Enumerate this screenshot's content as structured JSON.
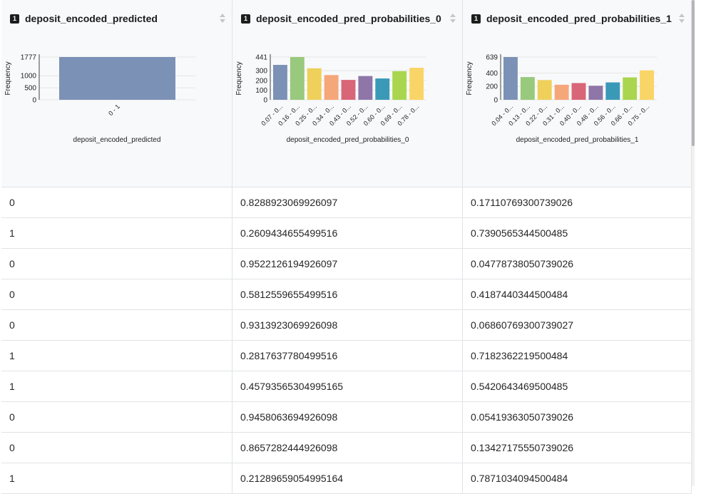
{
  "columns": [
    {
      "name": "deposit_encoded_predicted",
      "type_badge": "1"
    },
    {
      "name": "deposit_encoded_pred_probabilities_0",
      "type_badge": "1"
    },
    {
      "name": "deposit_encoded_pred_probabilities_1",
      "type_badge": "1"
    }
  ],
  "chart_data": [
    {
      "type": "bar",
      "ylabel": "Frequency",
      "xlabel": "deposit_encoded_predicted",
      "y_ticks": [
        "0",
        "500",
        "1000",
        "1777"
      ],
      "ylim": [
        0,
        1777
      ],
      "categories": [
        "0 - 1"
      ],
      "values": [
        1777
      ],
      "colors": [
        "#7b91b5"
      ]
    },
    {
      "type": "bar",
      "ylabel": "Frequency",
      "xlabel": "deposit_encoded_pred_probabilities_0",
      "y_ticks": [
        "0",
        "100",
        "200",
        "300",
        "441"
      ],
      "ylim": [
        0,
        441
      ],
      "categories": [
        "0.07 - 0...",
        "0.16 - 0...",
        "0.25 - 0...",
        "0.34 - 0...",
        "0.43 - 0...",
        "0.52 - 0...",
        "0.60 - 0...",
        "0.69 - 0...",
        "0.78 - 0..."
      ],
      "values": [
        360,
        441,
        325,
        255,
        205,
        245,
        220,
        295,
        330
      ],
      "colors": [
        "#7b91b5",
        "#98c97d",
        "#eed05b",
        "#f5a77a",
        "#d96578",
        "#8e76a8",
        "#3b99b8",
        "#a9d64e",
        "#f9d567"
      ]
    },
    {
      "type": "bar",
      "ylabel": "Frequency",
      "xlabel": "deposit_encoded_pred_probabilities_1",
      "y_ticks": [
        "0",
        "200",
        "400",
        "639"
      ],
      "ylim": [
        0,
        639
      ],
      "categories": [
        "0.04 - 0...",
        "0.13 - 0...",
        "0.22 - 0...",
        "0.31 - 0...",
        "0.40 - 0...",
        "0.48 - 0...",
        "0.56 - 0...",
        "0.66 - 0...",
        "0.75 - 0..."
      ],
      "values": [
        639,
        340,
        295,
        225,
        250,
        210,
        260,
        335,
        440
      ],
      "colors": [
        "#7b91b5",
        "#98c97d",
        "#eed05b",
        "#f5a77a",
        "#d96578",
        "#8e76a8",
        "#3b99b8",
        "#a9d64e",
        "#f9d567"
      ]
    }
  ],
  "rows": [
    [
      "0",
      "0.8288923069926097",
      "0.17110769300739026"
    ],
    [
      "1",
      "0.2609434655499516",
      "0.7390565344500485"
    ],
    [
      "0",
      "0.9522126194926097",
      "0.04778738050739026"
    ],
    [
      "0",
      "0.5812559655499516",
      "0.4187440344500484"
    ],
    [
      "0",
      "0.9313923069926098",
      "0.06860769300739027"
    ],
    [
      "1",
      "0.2817637780499516",
      "0.7182362219500484"
    ],
    [
      "1",
      "0.45793565304995165",
      "0.5420643469500485"
    ],
    [
      "0",
      "0.9458063694926098",
      "0.05419363050739026"
    ],
    [
      "0",
      "0.8657282444926098",
      "0.13427175550739026"
    ],
    [
      "1",
      "0.21289659054995164",
      "0.7871034094500484"
    ]
  ]
}
